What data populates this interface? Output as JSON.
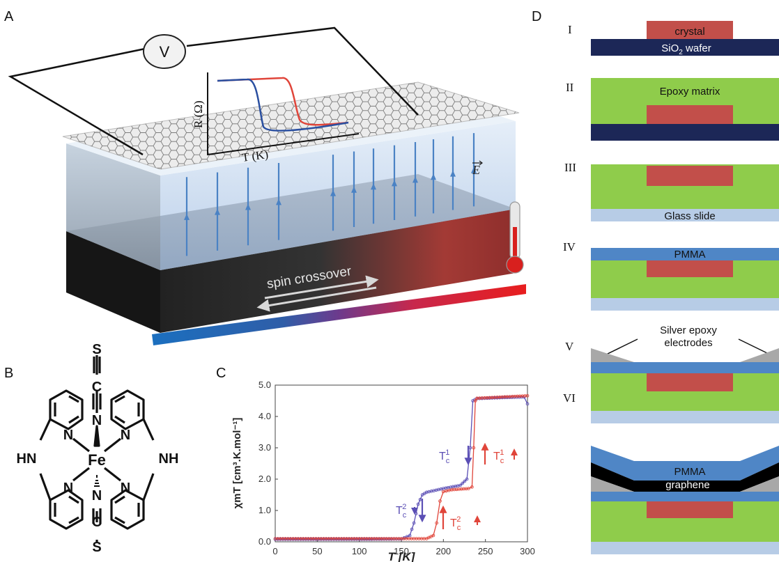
{
  "panel_labels": {
    "a": "A",
    "b": "B",
    "c": "C",
    "d": "D"
  },
  "panel_a": {
    "voltmeter": "V",
    "inset_ylabel": "R (Ω)",
    "inset_xlabel": "T (K)",
    "field_label": "E",
    "crossover_label": "spin crossover"
  },
  "panel_b": {
    "atoms": {
      "sulfur_top": "S",
      "carbon_top": "C",
      "nitrogen_top": "N",
      "iron": "Fe",
      "nitrogen_bottom": "N",
      "carbon_bottom": "C",
      "sulfur_bottom": "S",
      "nh_left": "HN",
      "nh_right": "NH",
      "n_upper_left": "N",
      "n_upper_right": "N",
      "n_lower_left": "N",
      "n_lower_right": "N"
    }
  },
  "chart_data": {
    "type": "line",
    "xlabel": "T [K]",
    "ylabel": "χmT [cm³.K.mol⁻¹]",
    "xlim": [
      0,
      300
    ],
    "ylim": [
      0,
      5
    ],
    "xticks": [
      "0",
      "50",
      "100",
      "150",
      "200",
      "250",
      "300"
    ],
    "yticks": [
      "0.0",
      "1.0",
      "2.0",
      "3.0",
      "4.0",
      "5.0"
    ],
    "grid": false,
    "series": [
      {
        "name": "cooling",
        "color": "#5b4fb5",
        "x": [
          0,
          100,
          150,
          160,
          165,
          170,
          175,
          180,
          200,
          220,
          228,
          232,
          235,
          240,
          270,
          296,
          300
        ],
        "y": [
          0.08,
          0.08,
          0.09,
          0.2,
          0.6,
          1.2,
          1.5,
          1.58,
          1.7,
          1.8,
          2.0,
          3.0,
          4.5,
          4.57,
          4.6,
          4.62,
          4.4
        ]
      },
      {
        "name": "heating",
        "color": "#e0453a",
        "x": [
          0,
          100,
          150,
          180,
          188,
          192,
          196,
          200,
          210,
          230,
          234,
          236,
          238,
          240,
          270,
          300
        ],
        "y": [
          0.1,
          0.1,
          0.1,
          0.1,
          0.2,
          0.6,
          1.3,
          1.6,
          1.66,
          1.7,
          1.75,
          3.0,
          4.5,
          4.58,
          4.62,
          4.66
        ]
      }
    ],
    "annotations": {
      "tc1_down": "T",
      "tc1_down_sup": "1",
      "tc1_down_sub": "c",
      "tc1_up": "T",
      "tc1_up_sup": "1",
      "tc1_up_sub": "c",
      "tc2_down": "T",
      "tc2_down_sup": "2",
      "tc2_down_sub": "c",
      "tc2_up": "T",
      "tc2_up_sup": "2",
      "tc2_up_sub": "c"
    }
  },
  "panel_d": {
    "steps": [
      {
        "numeral": "I"
      },
      {
        "numeral": "II"
      },
      {
        "numeral": "III"
      },
      {
        "numeral": "IV"
      },
      {
        "numeral": "V"
      },
      {
        "numeral": "VI"
      }
    ],
    "crystal_label": "crystal",
    "wafer_label": "SiO",
    "wafer_sub": "2",
    "wafer_suffix": " wafer",
    "epoxy_label": "Epoxy matrix",
    "glass_label": "Glass slide",
    "pmma_label": "PMMA",
    "silver_label_line1": "Silver epoxy",
    "silver_label_line2": "electrodes",
    "pmma_top_label": "PMMA",
    "graphene_label": "graphene"
  },
  "colors": {
    "wafer": "#1c2757",
    "crystal": "#c24f4a",
    "epoxy": "#8fcc4b",
    "glass": "#b7cce6",
    "pmma": "#4f86c6",
    "silver": "#a8a8a8",
    "graphene": "#000000",
    "cool": "#5b4fb5",
    "heat": "#e0453a"
  }
}
